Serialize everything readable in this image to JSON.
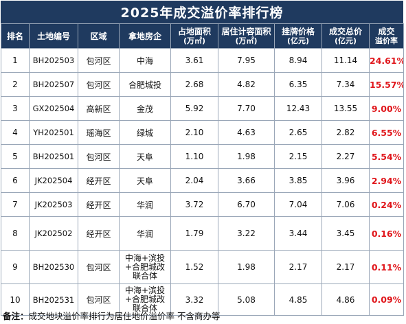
{
  "title": "2025年成交溢价率排行榜",
  "headers": {
    "rank": "排名",
    "code": "土地编号",
    "district": "区域",
    "developer": "拿地房企",
    "land_area": "占地面积",
    "land_area_unit": "(万㎡)",
    "res_area": "居住计容面积",
    "res_area_unit": "(万㎡)",
    "list_price": "挂牌价格",
    "list_price_unit": "(亿元)",
    "total_price": "成交总价",
    "total_price_unit": "(亿元)",
    "premium": "成交",
    "premium_line2": "溢价率"
  },
  "rows": [
    {
      "rank": "1",
      "code": "BH202503",
      "district": "包河区",
      "developer": "中海",
      "land_area": "3.61",
      "res_area": "7.95",
      "list_price": "8.94",
      "total_price": "11.14",
      "premium": "24.61%"
    },
    {
      "rank": "2",
      "code": "BH202507",
      "district": "包河区",
      "developer": "合肥城投",
      "land_area": "2.68",
      "res_area": "4.82",
      "list_price": "6.35",
      "total_price": "7.34",
      "premium": "15.57%"
    },
    {
      "rank": "3",
      "code": "GX202504",
      "district": "高新区",
      "developer": "金茂",
      "land_area": "5.92",
      "res_area": "7.70",
      "list_price": "12.43",
      "total_price": "13.55",
      "premium": "9.00%"
    },
    {
      "rank": "4",
      "code": "YH202501",
      "district": "瑶海区",
      "developer": "绿城",
      "land_area": "2.10",
      "res_area": "4.63",
      "list_price": "2.65",
      "total_price": "2.82",
      "premium": "6.55%"
    },
    {
      "rank": "5",
      "code": "BH202501",
      "district": "包河区",
      "developer": "天阜",
      "land_area": "1.10",
      "res_area": "1.98",
      "list_price": "2.15",
      "total_price": "2.27",
      "premium": "5.54%"
    },
    {
      "rank": "6",
      "code": "JK202504",
      "district": "经开区",
      "developer": "天阜",
      "land_area": "2.04",
      "res_area": "3.66",
      "list_price": "3.85",
      "total_price": "3.96",
      "premium": "2.94%"
    },
    {
      "rank": "7",
      "code": "JK202503",
      "district": "经开区",
      "developer": "华润",
      "land_area": "3.72",
      "res_area": "6.70",
      "list_price": "7.04",
      "total_price": "7.06",
      "premium": "0.24%"
    },
    {
      "rank": "8",
      "code": "JK202502",
      "district": "经开区",
      "developer": "华润",
      "land_area": "1.79",
      "res_area": "3.22",
      "list_price": "3.44",
      "total_price": "3.45",
      "premium": "0.16%"
    },
    {
      "rank": "9",
      "code": "BH202530",
      "district": "包河区",
      "developer_lines": [
        "中海+滨投",
        "+合肥城改",
        "联合体"
      ],
      "land_area": "1.52",
      "res_area": "1.98",
      "list_price": "2.17",
      "total_price": "2.17",
      "premium": "0.11%"
    },
    {
      "rank": "10",
      "code": "BH202531",
      "district": "包河区",
      "developer_lines": [
        "中海+滨投",
        "+合肥城改",
        "联合体"
      ],
      "land_area": "3.32",
      "res_area": "5.08",
      "list_price": "4.85",
      "total_price": "4.86",
      "premium": "0.09%"
    }
  ],
  "note": {
    "label": "备注：",
    "text": "成交地块溢价率排行为居住地价溢价率   不含商办等"
  },
  "colors": {
    "header_bg": "#1f3a5f",
    "premium_text": "#e0161b",
    "grid": "#9aa7b8"
  }
}
